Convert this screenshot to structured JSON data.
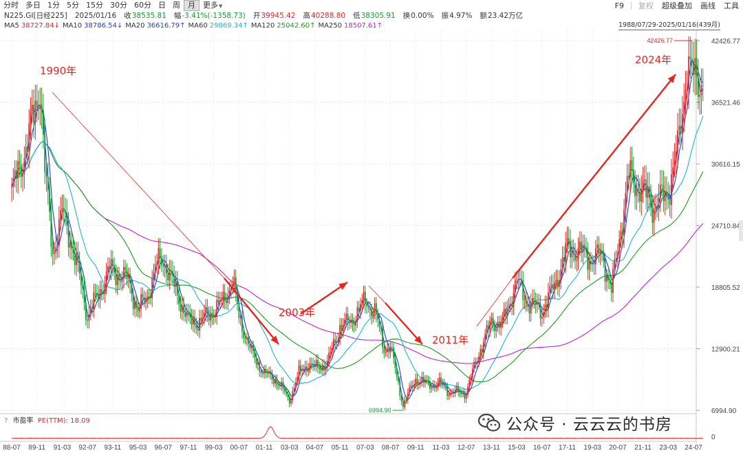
{
  "toolbar": {
    "periods": [
      "分时",
      "多日",
      "1分",
      "5分",
      "15分",
      "30分",
      "60分",
      "日",
      "周",
      "月",
      "更多"
    ],
    "active_period": "月",
    "right_buttons": [
      "F9",
      "复权",
      "超级叠加",
      "画线",
      "工具"
    ]
  },
  "quote": {
    "name": "N225.GI[日经225]",
    "date": "2025/01/16",
    "close_label": "收",
    "close": "38535.81",
    "change_label": "幅",
    "change": "-3.41%(-1358.73)",
    "open_label": "开",
    "open": "39945.42",
    "high_label": "高",
    "high": "40288.80",
    "low_label": "低",
    "low": "38305.91",
    "turnover_label": "换",
    "turnover": "0.00%",
    "amplitude_label": "振",
    "amplitude": "4.97%",
    "amount_label": "额",
    "amount": "23.42万亿"
  },
  "moving_averages": [
    {
      "label": "MA5",
      "value": "38727.84↓",
      "color": "#e0292a"
    },
    {
      "label": "MA10",
      "value": "38786.54↓",
      "color": "#1f3fd1"
    },
    {
      "label": "MA20",
      "value": "36616.79↑",
      "color": "#1f3fd1"
    },
    {
      "label": "MA60",
      "value": "29869.34↑",
      "color": "#19b6d6"
    },
    {
      "label": "MA120",
      "value": "25042.60↑",
      "color": "#1a9a1a"
    },
    {
      "label": "MA250",
      "value": "18507.61↑",
      "color": "#c21fd6"
    }
  ],
  "date_range": "1988/07/29-2025/01/16(439月)",
  "indicator": {
    "icon": "?",
    "name": "市盈率",
    "pe_label": "PE(TTM):",
    "pe_value": "18.09",
    "zero_label": "0"
  },
  "watermark": {
    "text": "公众号 · 云云云的书房",
    "icon": "wechat-icon"
  },
  "colors": {
    "up": "#e0292a",
    "down": "#149c2f",
    "ma5": "#e0292a",
    "ma10": "#1f3fd1",
    "ma60": "#19b6d6",
    "ma120": "#1a9a1a",
    "ma250": "#c21fd6",
    "arrow": "#e8241f"
  },
  "chart_data": {
    "type": "candlestick",
    "y_ticks": [
      "42426.77",
      "36521.46",
      "30616.15",
      "24710.84",
      "18805.52",
      "12900.21",
      "6994.90"
    ],
    "x_ticks": [
      "88-07",
      "89-11",
      "91-03",
      "92-07",
      "93-11",
      "95-03",
      "96-07",
      "97-11",
      "99-03",
      "00-07",
      "01-11",
      "03-03",
      "04-07",
      "05-11",
      "07-03",
      "08-07",
      "09-11",
      "11-03",
      "12-07",
      "13-11",
      "15-03",
      "16-07",
      "17-11",
      "19-03",
      "20-07",
      "21-11",
      "23-03",
      "24-07"
    ],
    "ylim": [
      6994.9,
      42426.77
    ],
    "max_label": "42426.77",
    "min_label": "6994.90",
    "annotations": [
      "1990年",
      "2003年",
      "2011年",
      "2024年"
    ],
    "series": [
      {
        "name": "N225",
        "points": [
          [
            "88-07",
            28000
          ],
          [
            "89-01",
            30500
          ],
          [
            "89-06",
            33500
          ],
          [
            "89-11",
            36500
          ],
          [
            "90-01",
            38500
          ],
          [
            "90-04",
            30000
          ],
          [
            "90-09",
            22000
          ],
          [
            "91-03",
            26000
          ],
          [
            "91-09",
            23000
          ],
          [
            "92-03",
            19000
          ],
          [
            "92-07",
            16000
          ],
          [
            "93-03",
            18500
          ],
          [
            "93-09",
            20500
          ],
          [
            "94-03",
            20000
          ],
          [
            "94-09",
            19500
          ],
          [
            "95-03",
            16500
          ],
          [
            "95-09",
            18000
          ],
          [
            "96-03",
            21000
          ],
          [
            "96-07",
            21500
          ],
          [
            "97-03",
            18500
          ],
          [
            "97-11",
            15500
          ],
          [
            "98-06",
            15500
          ],
          [
            "99-03",
            16500
          ],
          [
            "99-09",
            17500
          ],
          [
            "00-03",
            19500
          ],
          [
            "00-07",
            16000
          ],
          [
            "01-03",
            12500
          ],
          [
            "01-11",
            10500
          ],
          [
            "02-06",
            10000
          ],
          [
            "03-03",
            8000
          ],
          [
            "03-09",
            10500
          ],
          [
            "04-03",
            11500
          ],
          [
            "04-07",
            11000
          ],
          [
            "05-03",
            11500
          ],
          [
            "05-11",
            15000
          ],
          [
            "06-06",
            15500
          ],
          [
            "07-03",
            17500
          ],
          [
            "07-09",
            16500
          ],
          [
            "08-03",
            13000
          ],
          [
            "08-07",
            13000
          ],
          [
            "09-03",
            7500
          ],
          [
            "09-11",
            10000
          ],
          [
            "10-06",
            9500
          ],
          [
            "11-03",
            9500
          ],
          [
            "11-09",
            8700
          ],
          [
            "12-07",
            8700
          ],
          [
            "13-03",
            12500
          ],
          [
            "13-11",
            15500
          ],
          [
            "14-06",
            15300
          ],
          [
            "15-03",
            19500
          ],
          [
            "15-09",
            17500
          ],
          [
            "16-07",
            16500
          ],
          [
            "17-03",
            19000
          ],
          [
            "17-11",
            22500
          ],
          [
            "18-06",
            22300
          ],
          [
            "19-03",
            21500
          ],
          [
            "19-09",
            22000
          ],
          [
            "20-03",
            18500
          ],
          [
            "20-07",
            22500
          ],
          [
            "21-02",
            29500
          ],
          [
            "21-11",
            28000
          ],
          [
            "22-06",
            26500
          ],
          [
            "23-03",
            28000
          ],
          [
            "23-09",
            32000
          ],
          [
            "24-03",
            40000
          ],
          [
            "24-07",
            39000
          ],
          [
            "25-01",
            38535.81
          ]
        ]
      }
    ]
  }
}
